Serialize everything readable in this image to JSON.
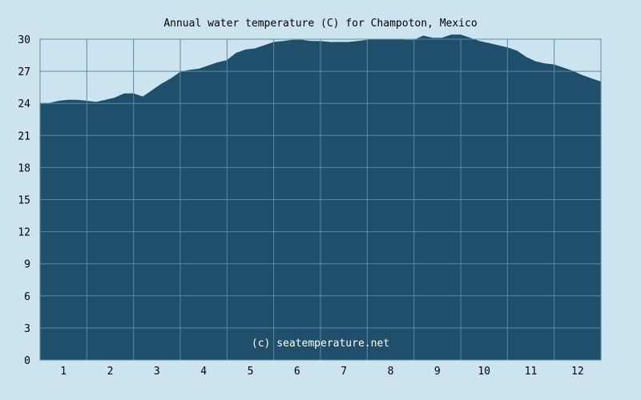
{
  "chart_data": {
    "type": "area",
    "title": "Annual water temperature (C) for Champoton, Mexico",
    "credit": "(c) seatemperature.net",
    "xlabel": "",
    "ylabel": "",
    "x_ticks": [
      "1",
      "2",
      "3",
      "4",
      "5",
      "6",
      "7",
      "8",
      "9",
      "10",
      "11",
      "12"
    ],
    "y_ticks": [
      "0",
      "3",
      "6",
      "9",
      "12",
      "15",
      "18",
      "21",
      "24",
      "27",
      "30"
    ],
    "ylim": [
      0,
      30
    ],
    "xlim": [
      0.5,
      12.5
    ],
    "grid": true,
    "colors": {
      "fill": "#1f4f6b",
      "background": "#cce4f0",
      "grid": "#5c8aa3"
    },
    "series": [
      {
        "x": [
          0.5,
          0.7,
          0.9,
          1.1,
          1.3,
          1.5,
          1.7,
          1.9,
          2.1,
          2.3,
          2.5,
          2.7,
          2.9,
          3.1,
          3.3,
          3.5,
          3.7,
          3.9,
          4.1,
          4.3,
          4.5,
          4.7,
          4.9,
          5.1,
          5.3,
          5.5,
          5.7,
          5.9,
          6.1,
          6.3,
          6.5,
          6.7,
          6.9,
          7.1,
          7.3,
          7.5,
          7.7,
          7.9,
          8.1,
          8.3,
          8.5,
          8.7,
          8.9,
          9.1,
          9.3,
          9.5,
          9.7,
          9.9,
          10.1,
          10.3,
          10.5,
          10.7,
          10.9,
          11.1,
          11.3,
          11.5,
          11.7,
          11.9,
          12.1,
          12.3,
          12.5
        ],
        "values": [
          24.0,
          24.0,
          24.2,
          24.3,
          24.3,
          24.2,
          24.1,
          24.3,
          24.5,
          24.9,
          24.9,
          24.6,
          25.2,
          25.8,
          26.3,
          26.9,
          27.1,
          27.2,
          27.5,
          27.8,
          28.0,
          28.7,
          29.0,
          29.1,
          29.4,
          29.7,
          29.8,
          29.9,
          29.9,
          29.8,
          29.8,
          29.7,
          29.7,
          29.7,
          29.8,
          29.9,
          30.0,
          30.0,
          30.0,
          29.9,
          29.9,
          30.3,
          30.1,
          30.1,
          30.4,
          30.4,
          30.1,
          29.8,
          29.6,
          29.4,
          29.2,
          28.9,
          28.3,
          27.9,
          27.7,
          27.6,
          27.3,
          27.0,
          26.6,
          26.3,
          26.0
        ]
      }
    ]
  }
}
